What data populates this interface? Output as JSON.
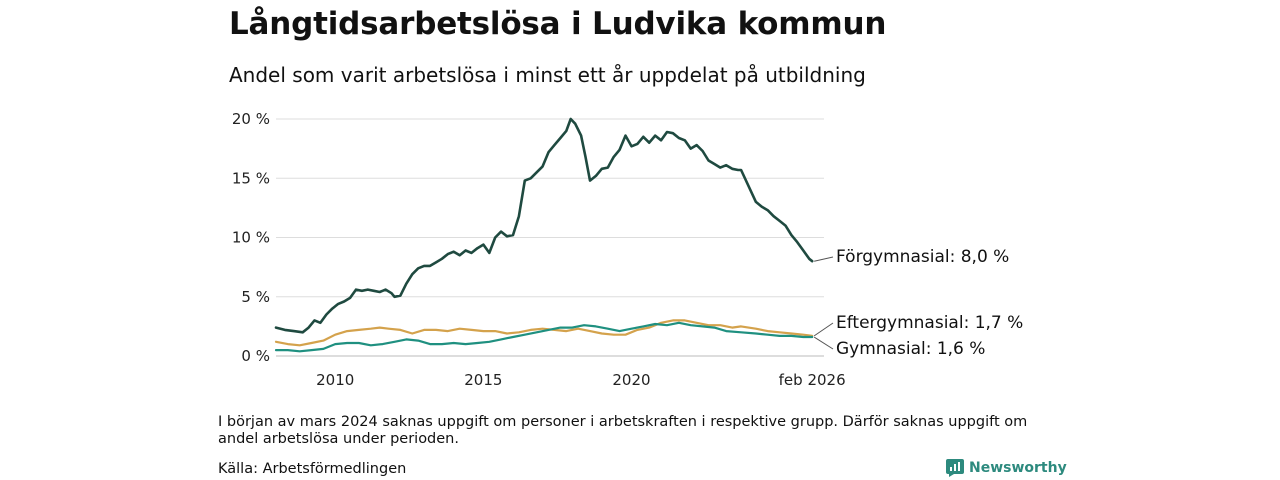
{
  "title": "Långtidsarbetslösa i Ludvika kommun",
  "subtitle": "Andel som varit arbetslösa i minst ett år uppdelat på utbildning",
  "note": "I början av mars 2024 saknas uppgift om personer i arbetskraften i respektive grupp. Därför saknas uppgift om andel arbetslösa under perioden.",
  "source": "Källa: Arbetsförmedlingen",
  "brand": {
    "name": "Newsworthy",
    "icon": "newsworthy-logo-icon",
    "color": "#2d8a7e"
  },
  "chart_data": {
    "type": "line",
    "title": "Långtidsarbetslösa i Ludvika kommun",
    "ylabel": "",
    "xlabel": "",
    "xlim": [
      2008.0,
      2026.5
    ],
    "ylim": [
      0,
      20
    ],
    "yticks": [
      0,
      5,
      10,
      15,
      20
    ],
    "ytick_labels": [
      "0 %",
      "5 %",
      "10 %",
      "15 %",
      "20 %"
    ],
    "xticks": [
      2010,
      2015,
      2020,
      2026.1
    ],
    "xtick_labels": [
      "2010",
      "2015",
      "2020",
      "feb 2026"
    ],
    "grid": true,
    "gap": [
      2023.75,
      2024.2
    ],
    "series": [
      {
        "name": "Förgymnasial",
        "color": "#1f4a40",
        "label": "Förgymnasial: 8,0 %",
        "points": [
          [
            2008.0,
            2.4
          ],
          [
            2008.3,
            2.2
          ],
          [
            2008.6,
            2.1
          ],
          [
            2008.9,
            2.0
          ],
          [
            2009.1,
            2.4
          ],
          [
            2009.3,
            3.0
          ],
          [
            2009.5,
            2.8
          ],
          [
            2009.7,
            3.5
          ],
          [
            2009.9,
            4.0
          ],
          [
            2010.1,
            4.4
          ],
          [
            2010.3,
            4.6
          ],
          [
            2010.5,
            4.9
          ],
          [
            2010.7,
            5.6
          ],
          [
            2010.9,
            5.5
          ],
          [
            2011.1,
            5.6
          ],
          [
            2011.3,
            5.5
          ],
          [
            2011.5,
            5.4
          ],
          [
            2011.7,
            5.6
          ],
          [
            2011.9,
            5.3
          ],
          [
            2012.0,
            5.0
          ],
          [
            2012.2,
            5.1
          ],
          [
            2012.4,
            6.1
          ],
          [
            2012.6,
            6.9
          ],
          [
            2012.8,
            7.4
          ],
          [
            2013.0,
            7.6
          ],
          [
            2013.2,
            7.6
          ],
          [
            2013.4,
            7.9
          ],
          [
            2013.6,
            8.2
          ],
          [
            2013.8,
            8.6
          ],
          [
            2014.0,
            8.8
          ],
          [
            2014.2,
            8.5
          ],
          [
            2014.4,
            8.9
          ],
          [
            2014.6,
            8.7
          ],
          [
            2014.8,
            9.1
          ],
          [
            2015.0,
            9.4
          ],
          [
            2015.2,
            8.7
          ],
          [
            2015.4,
            10.0
          ],
          [
            2015.6,
            10.5
          ],
          [
            2015.8,
            10.1
          ],
          [
            2016.0,
            10.2
          ],
          [
            2016.2,
            11.8
          ],
          [
            2016.4,
            14.8
          ],
          [
            2016.6,
            15.0
          ],
          [
            2016.8,
            15.5
          ],
          [
            2017.0,
            16.0
          ],
          [
            2017.2,
            17.2
          ],
          [
            2017.4,
            17.8
          ],
          [
            2017.6,
            18.4
          ],
          [
            2017.8,
            19.0
          ],
          [
            2017.95,
            20.0
          ],
          [
            2018.1,
            19.6
          ],
          [
            2018.3,
            18.6
          ],
          [
            2018.45,
            16.8
          ],
          [
            2018.6,
            14.8
          ],
          [
            2018.8,
            15.2
          ],
          [
            2019.0,
            15.8
          ],
          [
            2019.2,
            15.9
          ],
          [
            2019.4,
            16.8
          ],
          [
            2019.6,
            17.4
          ],
          [
            2019.8,
            18.6
          ],
          [
            2020.0,
            17.7
          ],
          [
            2020.2,
            17.9
          ],
          [
            2020.4,
            18.5
          ],
          [
            2020.6,
            18.0
          ],
          [
            2020.8,
            18.6
          ],
          [
            2021.0,
            18.2
          ],
          [
            2021.2,
            18.9
          ],
          [
            2021.4,
            18.8
          ],
          [
            2021.6,
            18.4
          ],
          [
            2021.8,
            18.2
          ],
          [
            2022.0,
            17.5
          ],
          [
            2022.2,
            17.8
          ],
          [
            2022.4,
            17.3
          ],
          [
            2022.6,
            16.5
          ],
          [
            2022.8,
            16.2
          ],
          [
            2023.0,
            15.9
          ],
          [
            2023.2,
            16.1
          ],
          [
            2023.4,
            15.8
          ],
          [
            2023.6,
            15.7
          ],
          [
            2023.7,
            15.7
          ],
          [
            2024.2,
            13.0
          ],
          [
            2024.4,
            12.6
          ],
          [
            2024.6,
            12.3
          ],
          [
            2024.8,
            11.8
          ],
          [
            2025.0,
            11.4
          ],
          [
            2025.2,
            11.0
          ],
          [
            2025.4,
            10.2
          ],
          [
            2025.6,
            9.6
          ],
          [
            2025.8,
            8.9
          ],
          [
            2026.0,
            8.2
          ],
          [
            2026.1,
            8.0
          ]
        ]
      },
      {
        "name": "Eftergymnasial",
        "color": "#d4a24c",
        "label": "Eftergymnasial: 1,7 %",
        "points": [
          [
            2008.0,
            1.2
          ],
          [
            2008.4,
            1.0
          ],
          [
            2008.8,
            0.9
          ],
          [
            2009.2,
            1.1
          ],
          [
            2009.6,
            1.3
          ],
          [
            2010.0,
            1.8
          ],
          [
            2010.4,
            2.1
          ],
          [
            2010.8,
            2.2
          ],
          [
            2011.2,
            2.3
          ],
          [
            2011.5,
            2.4
          ],
          [
            2011.8,
            2.3
          ],
          [
            2012.2,
            2.2
          ],
          [
            2012.6,
            1.9
          ],
          [
            2013.0,
            2.2
          ],
          [
            2013.4,
            2.2
          ],
          [
            2013.8,
            2.1
          ],
          [
            2014.2,
            2.3
          ],
          [
            2014.6,
            2.2
          ],
          [
            2015.0,
            2.1
          ],
          [
            2015.4,
            2.1
          ],
          [
            2015.8,
            1.9
          ],
          [
            2016.2,
            2.0
          ],
          [
            2016.6,
            2.2
          ],
          [
            2017.0,
            2.3
          ],
          [
            2017.4,
            2.2
          ],
          [
            2017.8,
            2.1
          ],
          [
            2018.2,
            2.3
          ],
          [
            2018.6,
            2.1
          ],
          [
            2019.0,
            1.9
          ],
          [
            2019.4,
            1.8
          ],
          [
            2019.8,
            1.8
          ],
          [
            2020.2,
            2.2
          ],
          [
            2020.6,
            2.4
          ],
          [
            2021.0,
            2.8
          ],
          [
            2021.4,
            3.0
          ],
          [
            2021.8,
            3.0
          ],
          [
            2022.2,
            2.8
          ],
          [
            2022.6,
            2.6
          ],
          [
            2023.0,
            2.6
          ],
          [
            2023.4,
            2.4
          ],
          [
            2023.7,
            2.5
          ],
          [
            2024.2,
            2.3
          ],
          [
            2024.6,
            2.1
          ],
          [
            2025.0,
            2.0
          ],
          [
            2025.4,
            1.9
          ],
          [
            2025.8,
            1.8
          ],
          [
            2026.1,
            1.7
          ]
        ]
      },
      {
        "name": "Gymnasial",
        "color": "#1f9080",
        "label": "Gymnasial: 1,6 %",
        "points": [
          [
            2008.0,
            0.5
          ],
          [
            2008.4,
            0.5
          ],
          [
            2008.8,
            0.4
          ],
          [
            2009.2,
            0.5
          ],
          [
            2009.6,
            0.6
          ],
          [
            2010.0,
            1.0
          ],
          [
            2010.4,
            1.1
          ],
          [
            2010.8,
            1.1
          ],
          [
            2011.2,
            0.9
          ],
          [
            2011.6,
            1.0
          ],
          [
            2012.0,
            1.2
          ],
          [
            2012.4,
            1.4
          ],
          [
            2012.8,
            1.3
          ],
          [
            2013.2,
            1.0
          ],
          [
            2013.6,
            1.0
          ],
          [
            2014.0,
            1.1
          ],
          [
            2014.4,
            1.0
          ],
          [
            2014.8,
            1.1
          ],
          [
            2015.2,
            1.2
          ],
          [
            2015.6,
            1.4
          ],
          [
            2016.0,
            1.6
          ],
          [
            2016.4,
            1.8
          ],
          [
            2016.8,
            2.0
          ],
          [
            2017.2,
            2.2
          ],
          [
            2017.6,
            2.4
          ],
          [
            2018.0,
            2.4
          ],
          [
            2018.4,
            2.6
          ],
          [
            2018.8,
            2.5
          ],
          [
            2019.2,
            2.3
          ],
          [
            2019.6,
            2.1
          ],
          [
            2020.0,
            2.3
          ],
          [
            2020.4,
            2.5
          ],
          [
            2020.8,
            2.7
          ],
          [
            2021.2,
            2.6
          ],
          [
            2021.6,
            2.8
          ],
          [
            2022.0,
            2.6
          ],
          [
            2022.4,
            2.5
          ],
          [
            2022.8,
            2.4
          ],
          [
            2023.2,
            2.1
          ],
          [
            2023.7,
            2.0
          ],
          [
            2024.2,
            1.9
          ],
          [
            2024.6,
            1.8
          ],
          [
            2025.0,
            1.7
          ],
          [
            2025.4,
            1.7
          ],
          [
            2025.8,
            1.6
          ],
          [
            2026.1,
            1.6
          ]
        ]
      }
    ]
  }
}
